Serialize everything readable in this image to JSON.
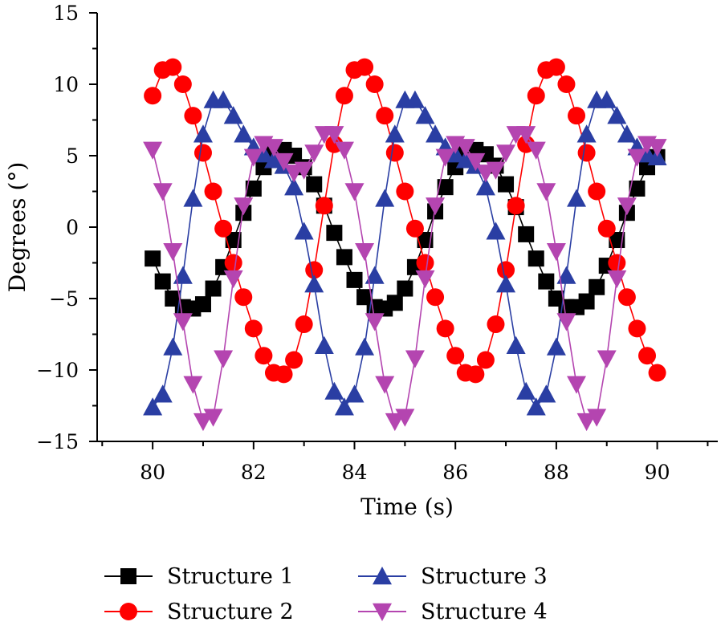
{
  "chart_data": {
    "type": "line",
    "xlabel": "Time (s)",
    "ylabel": "Degrees (°)",
    "xlim": [
      78.9,
      91.2
    ],
    "ylim": [
      -15,
      15
    ],
    "xticks": [
      80,
      82,
      84,
      86,
      88,
      90
    ],
    "yticks": [
      15,
      10,
      5,
      0,
      -5,
      -10,
      -15
    ],
    "ytick_labels": [
      "15",
      "10",
      "5",
      "0",
      "−5",
      "−10",
      "−15"
    ],
    "grid": false,
    "legend_position": "bottom",
    "x": [
      80.0,
      80.2,
      80.4,
      80.6,
      80.8,
      81.0,
      81.2,
      81.4,
      81.6,
      81.8,
      82.0,
      82.2,
      82.4,
      82.6,
      82.8,
      83.0,
      83.2,
      83.4,
      83.6,
      83.8,
      84.0,
      84.2,
      84.4,
      84.6,
      84.8,
      85.0,
      85.2,
      85.4,
      85.6,
      85.8,
      86.0,
      86.2,
      86.4,
      86.6,
      86.8,
      87.0,
      87.2,
      87.4,
      87.6,
      87.8,
      88.0,
      88.2,
      88.4,
      88.6,
      88.8,
      89.0,
      89.2,
      89.4,
      89.6,
      89.8,
      90.0
    ],
    "series": [
      {
        "name": "Structure 1",
        "color": "#000000",
        "marker": "square",
        "values": [
          -2.2,
          -3.8,
          -5.0,
          -5.6,
          -5.7,
          -5.4,
          -4.3,
          -2.8,
          -0.9,
          1.0,
          2.7,
          4.2,
          5.1,
          5.4,
          5.0,
          4.2,
          3.0,
          1.5,
          -0.4,
          -2.1,
          -3.7,
          -4.9,
          -5.6,
          -5.7,
          -5.3,
          -4.3,
          -2.8,
          -0.9,
          1.1,
          2.8,
          4.2,
          5.1,
          5.4,
          5.1,
          4.3,
          3.0,
          1.4,
          -0.5,
          -2.2,
          -3.8,
          -5.0,
          -5.6,
          -5.6,
          -5.2,
          -4.2,
          -2.7,
          -0.9,
          1.0,
          2.7,
          4.2,
          4.9
        ]
      },
      {
        "name": "Structure 2",
        "color": "#ff0000",
        "marker": "circle",
        "values": [
          9.2,
          11.0,
          11.2,
          10.0,
          7.8,
          5.2,
          2.5,
          -0.1,
          -2.5,
          -4.9,
          -7.1,
          -9.0,
          -10.2,
          -10.3,
          -9.3,
          -6.8,
          -3.0,
          1.5,
          5.8,
          9.2,
          11.0,
          11.2,
          10.0,
          7.8,
          5.2,
          2.5,
          -0.1,
          -2.5,
          -4.9,
          -7.1,
          -9.0,
          -10.2,
          -10.3,
          -9.3,
          -6.8,
          -3.0,
          1.5,
          5.8,
          9.2,
          11.0,
          11.2,
          10.0,
          7.8,
          5.2,
          2.5,
          -0.1,
          -2.5,
          -4.9,
          -7.1,
          -9.0,
          -10.2
        ]
      },
      {
        "name": "Structure 3",
        "color": "#2a3ea3",
        "marker": "triangle-up",
        "values": [
          -12.6,
          -11.7,
          -8.4,
          -3.4,
          2.0,
          6.5,
          8.9,
          8.9,
          7.8,
          6.5,
          5.6,
          5.1,
          4.7,
          4.3,
          2.8,
          -0.3,
          -4.0,
          -8.3,
          -11.5,
          -12.6,
          -11.7,
          -8.4,
          -3.4,
          2.0,
          6.5,
          8.9,
          8.9,
          7.8,
          6.5,
          5.6,
          5.1,
          4.7,
          4.3,
          2.8,
          -0.3,
          -4.0,
          -8.3,
          -11.5,
          -12.6,
          -11.7,
          -8.4,
          -3.4,
          2.0,
          6.5,
          8.9,
          8.9,
          7.8,
          6.5,
          5.6,
          5.1,
          4.9
        ]
      },
      {
        "name": "Structure 4",
        "color": "#b445b0",
        "marker": "triangle-down",
        "values": [
          5.4,
          2.5,
          -1.7,
          -6.6,
          -11.0,
          -13.6,
          -13.3,
          -9.2,
          -3.6,
          1.5,
          4.9,
          5.8,
          5.6,
          4.6,
          3.8,
          4.0,
          5.2,
          6.5,
          6.5,
          5.4,
          2.5,
          -1.7,
          -6.6,
          -11.0,
          -13.6,
          -13.3,
          -9.2,
          -3.6,
          1.5,
          4.9,
          5.8,
          5.6,
          4.6,
          3.8,
          4.0,
          5.2,
          6.5,
          6.5,
          5.4,
          2.5,
          -1.7,
          -6.6,
          -11.0,
          -13.6,
          -13.3,
          -9.2,
          -3.6,
          1.5,
          4.9,
          5.8,
          5.6
        ]
      }
    ]
  }
}
